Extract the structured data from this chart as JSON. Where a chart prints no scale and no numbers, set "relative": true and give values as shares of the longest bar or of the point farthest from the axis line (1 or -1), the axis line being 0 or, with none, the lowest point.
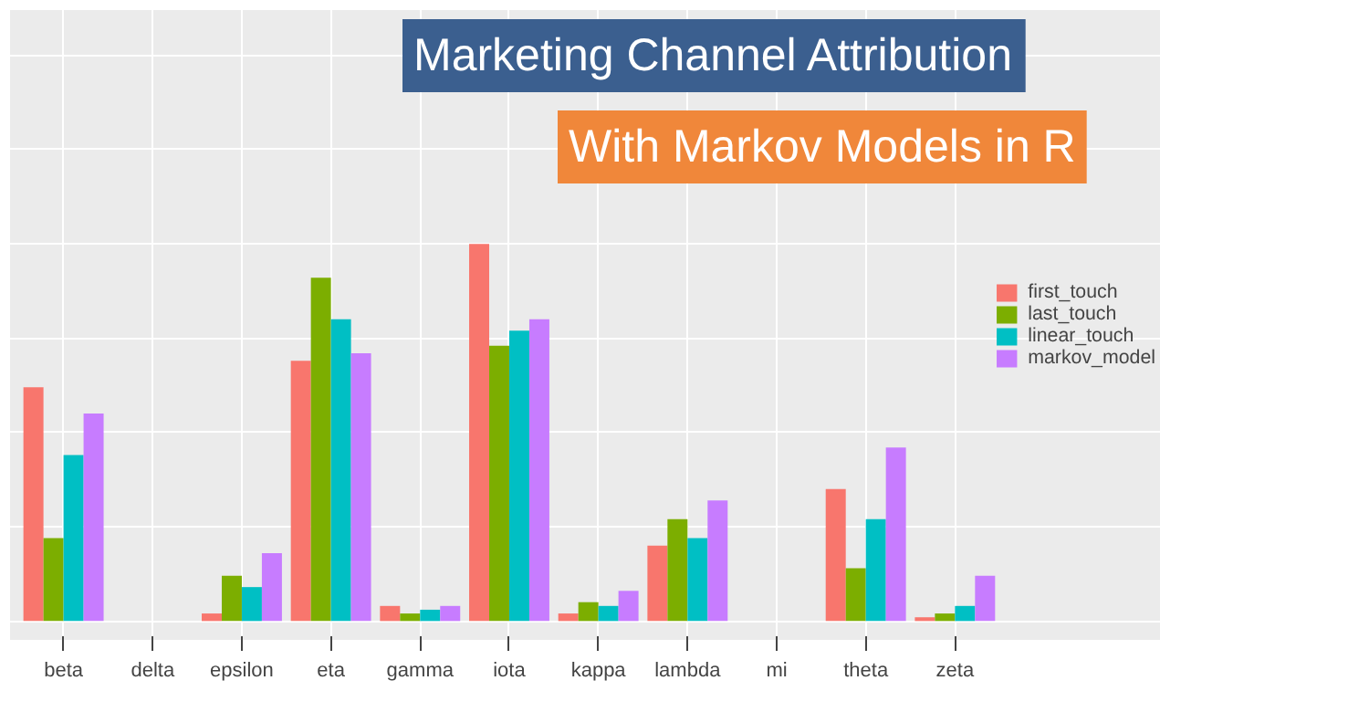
{
  "chart_data": {
    "type": "bar",
    "title": "Marketing Channel Attribution",
    "subtitle": "With Markov Models in R",
    "relative": true,
    "categories": [
      "beta",
      "delta",
      "epsilon",
      "eta",
      "gamma",
      "iota",
      "kappa",
      "lambda",
      "mi",
      "theta",
      "zeta"
    ],
    "series": [
      {
        "name": "first_touch",
        "color": "#f8766d",
        "values": [
          0.62,
          0,
          0.02,
          0.69,
          0.04,
          1,
          0.02,
          0.2,
          0,
          0.35,
          0.01
        ]
      },
      {
        "name": "last_touch",
        "color": "#7cae00",
        "values": [
          0.22,
          0,
          0.12,
          0.91,
          0.02,
          0.73,
          0.05,
          0.27,
          0,
          0.14,
          0.02
        ]
      },
      {
        "name": "linear_touch",
        "color": "#00bfc4",
        "values": [
          0.44,
          0,
          0.09,
          0.8,
          0.03,
          0.77,
          0.04,
          0.22,
          0,
          0.27,
          0.04
        ]
      },
      {
        "name": "markov_model",
        "color": "#c77cff",
        "values": [
          0.55,
          0,
          0.18,
          0.71,
          0.04,
          0.8,
          0.08,
          0.32,
          0,
          0.46,
          0.12
        ]
      }
    ],
    "grid": true,
    "legend": "right"
  }
}
